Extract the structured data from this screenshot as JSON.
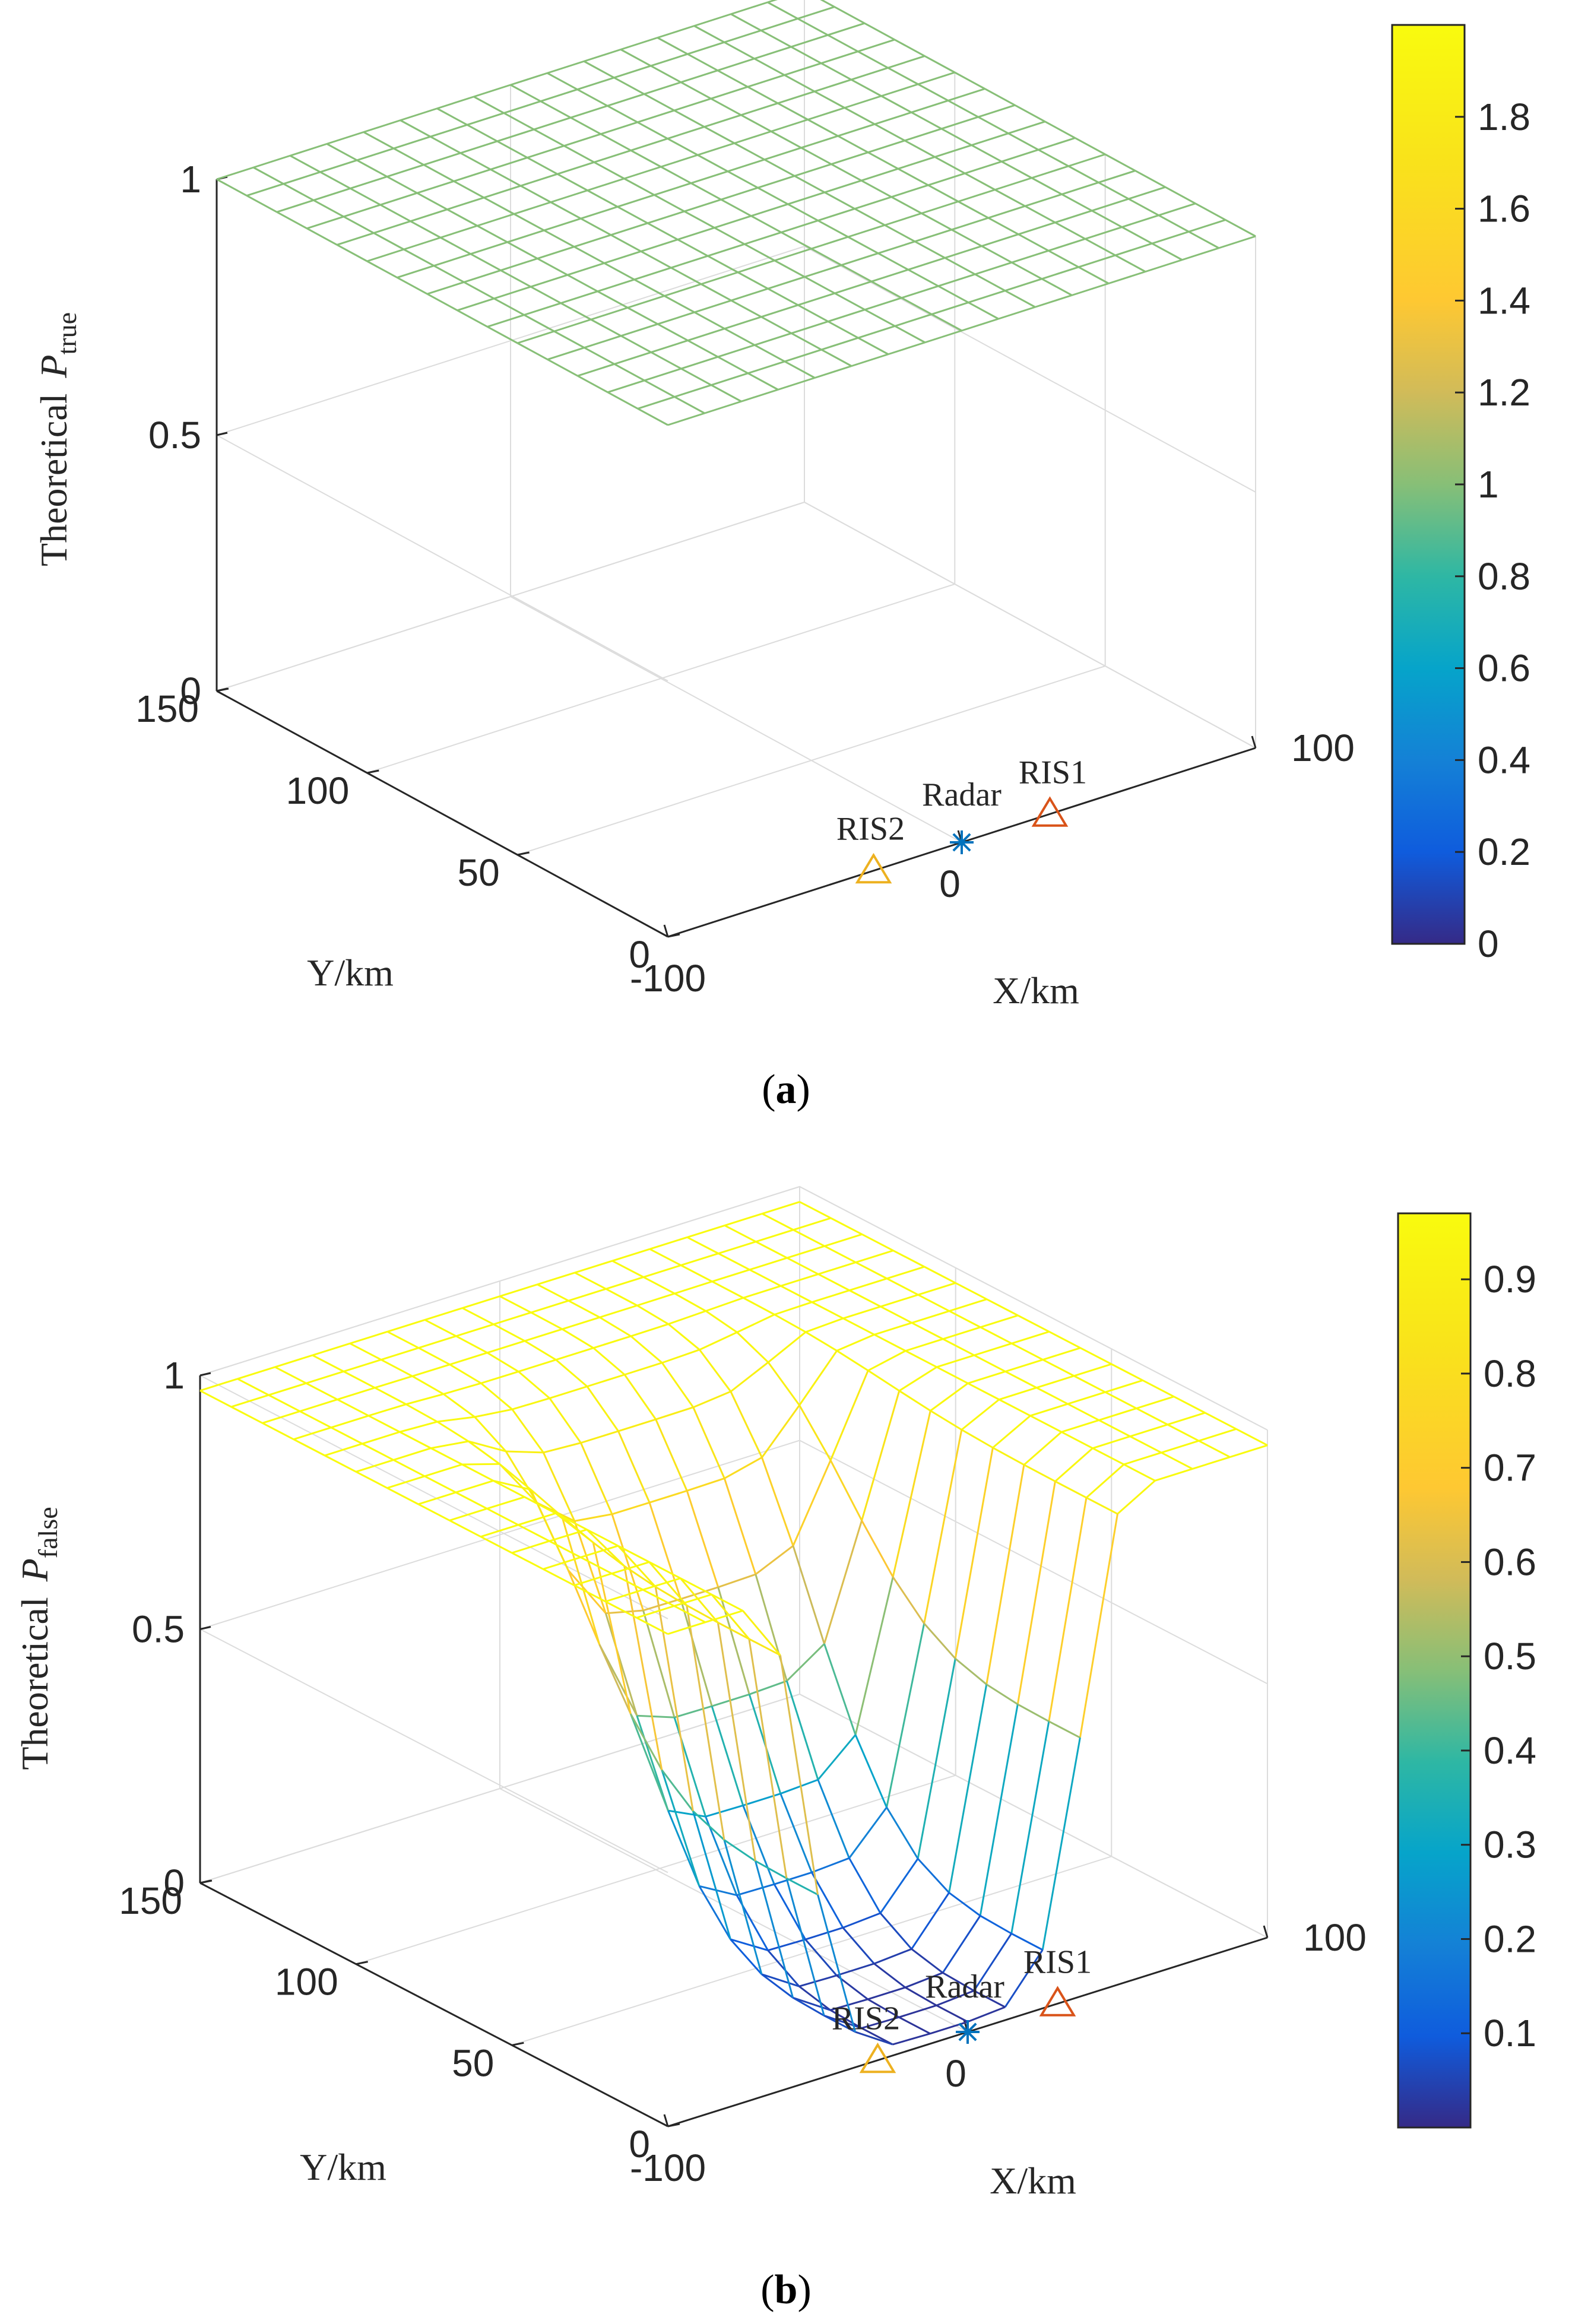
{
  "chart_data": [
    {
      "type": "surface",
      "panel_label": "a",
      "zlabel_text": "Theoretical",
      "zlabel_symbol": "P",
      "zlabel_subscript": "true",
      "xlabel": "X/km",
      "ylabel": "Y/km",
      "xlim": [
        -100,
        100
      ],
      "ylim": [
        0,
        150
      ],
      "zlim": [
        0,
        1
      ],
      "x_ticks": [
        "-100",
        "0",
        "100"
      ],
      "y_ticks": [
        "0",
        "50",
        "100",
        "150"
      ],
      "z_ticks": [
        "0",
        "0.5",
        "1"
      ],
      "colorbar": {
        "range": [
          0,
          2
        ],
        "ticks": [
          "0",
          "0.2",
          "0.4",
          "0.6",
          "0.8",
          "1",
          "1.2",
          "1.4",
          "1.6",
          "1.8"
        ]
      },
      "surface_value": 1,
      "grid": "17 x 16",
      "markers": [
        {
          "name": "Radar",
          "x": 0,
          "y": 0,
          "symbol": "asterisk",
          "color": "#0072BD"
        },
        {
          "name": "RIS1",
          "x": 30,
          "y": 0,
          "symbol": "triangle",
          "color": "#D95319"
        },
        {
          "name": "RIS2",
          "x": -30,
          "y": 0,
          "symbol": "triangle",
          "color": "#EDB120"
        }
      ]
    },
    {
      "type": "surface",
      "panel_label": "b",
      "zlabel_text": "Theoretical",
      "zlabel_symbol": "P",
      "zlabel_subscript": "false",
      "xlabel": "X/km",
      "ylabel": "Y/km",
      "xlim": [
        -100,
        100
      ],
      "ylim": [
        0,
        150
      ],
      "zlim": [
        0,
        1
      ],
      "x_ticks": [
        "-100",
        "0",
        "100"
      ],
      "y_ticks": [
        "0",
        "50",
        "100",
        "150"
      ],
      "z_ticks": [
        "0",
        "0.5",
        "1"
      ],
      "colorbar": {
        "range": [
          0,
          0.97
        ],
        "ticks": [
          "0.1",
          "0.2",
          "0.3",
          "0.4",
          "0.5",
          "0.6",
          "0.7",
          "0.8",
          "0.9"
        ]
      },
      "surface_description": "z near 0.97 far from radar, dropping to near 0 in a well centred on the radar between x=-60..40 km, y=0..60 km",
      "grid": "17 x 16",
      "markers": [
        {
          "name": "Radar",
          "x": 0,
          "y": 0,
          "symbol": "asterisk",
          "color": "#0072BD"
        },
        {
          "name": "RIS1",
          "x": 30,
          "y": 0,
          "symbol": "triangle",
          "color": "#D95319"
        },
        {
          "name": "RIS2",
          "x": -30,
          "y": 0,
          "symbol": "triangle",
          "color": "#EDB120"
        }
      ]
    }
  ]
}
